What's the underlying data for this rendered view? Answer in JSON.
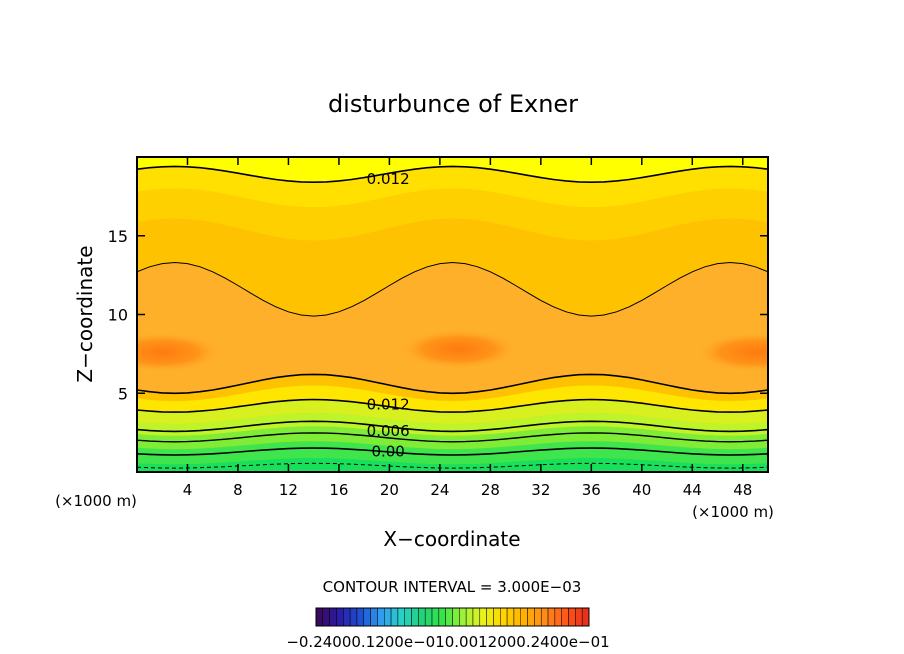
{
  "chart_data": {
    "type": "contour",
    "title": "disturbunce of Exner",
    "xlabel": "X−coordinate",
    "ylabel": "Z−coordinate",
    "x_units": "(×1000 m)",
    "y_units": "(×1000 m)",
    "xlim": [
      0,
      50
    ],
    "ylim": [
      0,
      20
    ],
    "x_ticks": [
      4,
      8,
      12,
      16,
      20,
      24,
      28,
      32,
      36,
      40,
      44,
      48
    ],
    "y_ticks": [
      5,
      10,
      15
    ],
    "contour_interval_text": "CONTOUR INTERVAL = 3.000E−03",
    "contour_labels": [
      {
        "text": "0.012",
        "x": 18,
        "z": 18.6
      },
      {
        "text": "0.012",
        "x": 18,
        "z": 4.3
      },
      {
        "text": "0.006",
        "x": 18,
        "z": 2.6
      },
      {
        "text": "0.00",
        "x": 18,
        "z": 1.3
      }
    ],
    "colorbar": {
      "min_label": "−0.24000e−01",
      "tick_labels": [
        "−0.24000e−01",
        "−0.12000e−01",
        "0.00",
        "0.12000e−01",
        "0.24000e−01"
      ],
      "displayed_text": "−0.24000.1200e−010.0012000.2400e−01",
      "colors": [
        "#3a0a5e",
        "#2a1ea8",
        "#1f4fd0",
        "#2f9cf0",
        "#28d0c8",
        "#20d27a",
        "#37e24a",
        "#9cf23a",
        "#e8f21a",
        "#ffd400",
        "#ffb000",
        "#ff8c1a",
        "#ff5a1a",
        "#e8301a"
      ]
    },
    "fill_colors": {
      "bottom": "#18e05a",
      "lower": "#bdf42a",
      "band": "#ffe600",
      "mid": "#ffc200",
      "upper": "#ffb02a",
      "core": "#ff8a14",
      "top": "#ffff00"
    }
  }
}
